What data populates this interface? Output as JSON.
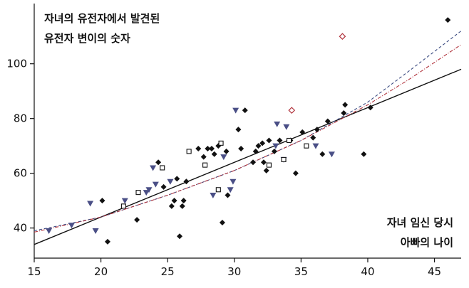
{
  "chart_data": {
    "type": "scatter",
    "title_lines": [
      "자녀의 유전자에서 발견된",
      "유전자 변이의 숫자"
    ],
    "xlabel_lines": [
      "자녀 임신 당시",
      "아빠의 나이"
    ],
    "xlim": [
      15,
      47
    ],
    "ylim": [
      29,
      122
    ],
    "xticks": [
      15,
      20,
      25,
      30,
      35,
      40,
      45
    ],
    "yticks": [
      40,
      60,
      80,
      100
    ],
    "grid": false,
    "series": [
      {
        "marker": "filled-diamond",
        "color": "#111111",
        "points": [
          [
            20.1,
            50
          ],
          [
            20.5,
            35
          ],
          [
            22.7,
            43
          ],
          [
            24.3,
            64
          ],
          [
            24.7,
            55
          ],
          [
            25.3,
            48
          ],
          [
            25.5,
            50
          ],
          [
            25.7,
            58
          ],
          [
            25.9,
            37
          ],
          [
            26.1,
            48
          ],
          [
            26.2,
            50
          ],
          [
            26.4,
            57
          ],
          [
            27.3,
            69
          ],
          [
            27.7,
            66
          ],
          [
            28.0,
            69
          ],
          [
            28.3,
            69
          ],
          [
            28.5,
            67
          ],
          [
            28.8,
            70
          ],
          [
            29.1,
            42
          ],
          [
            29.4,
            68
          ],
          [
            29.5,
            52
          ],
          [
            30.3,
            76
          ],
          [
            30.5,
            69
          ],
          [
            30.8,
            83
          ],
          [
            31.4,
            64
          ],
          [
            31.6,
            68
          ],
          [
            31.8,
            70
          ],
          [
            32.1,
            71
          ],
          [
            32.2,
            64
          ],
          [
            32.4,
            61
          ],
          [
            32.6,
            72
          ],
          [
            33.0,
            68
          ],
          [
            33.4,
            72
          ],
          [
            34.2,
            72
          ],
          [
            34.6,
            60
          ],
          [
            35.1,
            75
          ],
          [
            35.9,
            73
          ],
          [
            36.2,
            76
          ],
          [
            36.6,
            67
          ],
          [
            37.0,
            79
          ],
          [
            38.2,
            82
          ],
          [
            38.3,
            85
          ],
          [
            39.7,
            67
          ],
          [
            40.2,
            84
          ],
          [
            46.0,
            116
          ]
        ]
      },
      {
        "marker": "triangle-down",
        "color": "#4a4f86",
        "points": [
          [
            16.1,
            39
          ],
          [
            17.8,
            41
          ],
          [
            19.2,
            49
          ],
          [
            19.6,
            39
          ],
          [
            21.8,
            50
          ],
          [
            23.4,
            53
          ],
          [
            23.6,
            54
          ],
          [
            23.9,
            62
          ],
          [
            24.1,
            56
          ],
          [
            25.2,
            57
          ],
          [
            28.4,
            52
          ],
          [
            29.2,
            66
          ],
          [
            29.7,
            54
          ],
          [
            29.9,
            57
          ],
          [
            30.1,
            83
          ],
          [
            33.1,
            70
          ],
          [
            33.2,
            78
          ],
          [
            33.7,
            65
          ],
          [
            33.9,
            77
          ],
          [
            36.1,
            70
          ],
          [
            37.3,
            67
          ]
        ]
      },
      {
        "marker": "open-square",
        "color": "#111111",
        "points": [
          [
            21.7,
            48
          ],
          [
            22.8,
            53
          ],
          [
            24.6,
            62
          ],
          [
            26.6,
            68
          ],
          [
            27.8,
            63
          ],
          [
            28.8,
            54
          ],
          [
            29.0,
            71
          ],
          [
            32.6,
            63
          ],
          [
            33.7,
            65
          ],
          [
            34.1,
            72
          ],
          [
            35.4,
            70
          ]
        ]
      },
      {
        "marker": "open-diamond",
        "color": "#b0303a",
        "points": [
          [
            34.3,
            83
          ],
          [
            38.1,
            110
          ]
        ]
      }
    ],
    "fits": [
      {
        "style": "solid",
        "color": "#111111",
        "x": [
          15,
          47
        ],
        "y": [
          34,
          98
        ]
      },
      {
        "style": "dashed",
        "color": "#3a4a80",
        "x": [
          15,
          20,
          25,
          30,
          35,
          40,
          43,
          47
        ],
        "y": [
          39,
          44,
          52,
          61,
          72,
          86,
          97,
          112
        ]
      },
      {
        "style": "dashdot",
        "color": "#b0303a",
        "x": [
          15,
          20,
          25,
          30,
          35,
          40,
          43,
          47
        ],
        "y": [
          38.5,
          44,
          52,
          61,
          72,
          85,
          94,
          107
        ]
      }
    ]
  }
}
